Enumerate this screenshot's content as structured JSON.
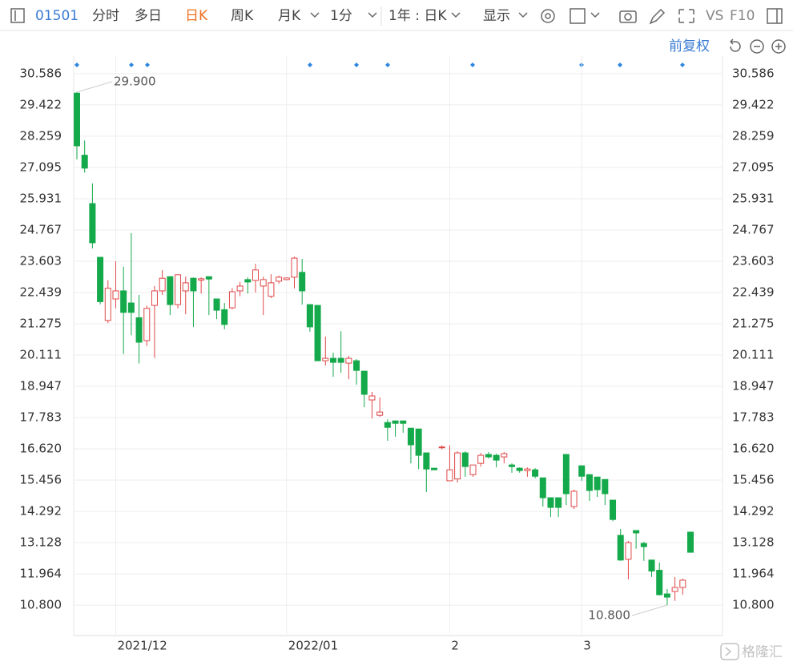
{
  "toolbar": {
    "code": "01501",
    "tabs": [
      "分时",
      "多日",
      "日K",
      "周K",
      "月K"
    ],
    "active_tab": 2,
    "active_color": "#f07020",
    "interval": "1分",
    "range": "1年 : 日K",
    "display": "显示",
    "vs": "VS",
    "f10": "F10"
  },
  "adjust": "前复权",
  "watermark": "格隆汇",
  "chart_data": {
    "type": "candlestick",
    "categories": [
      null,
      null,
      null,
      null,
      null,
      "2021/12",
      null,
      null,
      null,
      null,
      null,
      null,
      null,
      null,
      null,
      null,
      null,
      null,
      null,
      null,
      null,
      null,
      null,
      null,
      null,
      null,
      null,
      "2022/01",
      null,
      null,
      null,
      null,
      null,
      null,
      null,
      null,
      null,
      null,
      null,
      null,
      null,
      null,
      null,
      null,
      null,
      null,
      null,
      null,
      "2",
      null,
      null,
      null,
      null,
      null,
      null,
      null,
      null,
      null,
      null,
      null,
      null,
      null,
      null,
      null,
      null,
      "3",
      null,
      null,
      null,
      null,
      null,
      null,
      null,
      null,
      null,
      null,
      null,
      null,
      null,
      null
    ],
    "open": [
      29.86,
      27.55,
      25.75,
      23.75,
      21.4,
      22.2,
      22.5,
      22.05,
      21.5,
      20.65,
      21.96,
      22.5,
      23.03,
      21.99,
      22.5,
      22.97,
      22.9,
      23.03,
      22.2,
      21.8,
      21.87,
      22.5,
      22.92,
      22.89,
      22.68,
      22.3,
      22.86,
      22.92,
      23.01,
      23.19,
      21.99,
      21.96,
      19.9,
      19.99,
      19.99,
      19.81,
      19.9,
      19.51,
      18.44,
      17.87,
      17.6,
      17.66,
      17.66,
      17.39,
      17.36,
      16.47,
      15.9,
      16.66,
      15.43,
      15.5,
      16.47,
      15.66,
      16.08,
      16.41,
      16.38,
      16.32,
      16.02,
      15.9,
      15.81,
      15.84,
      15.54,
      14.8,
      14.8,
      16.41,
      14.47,
      15.99,
      15.66,
      15.57,
      15.48,
      14.71,
      13.4,
      12.51,
      13.58,
      13.1,
      12.48,
      12.1,
      11.22,
      11.31,
      11.46,
      13.52
    ],
    "high": [
      29.9,
      28.1,
      26.5,
      23.75,
      22.9,
      23.6,
      23.4,
      24.65,
      22.35,
      21.95,
      22.68,
      23.27,
      23.03,
      23.1,
      23.03,
      23.0,
      23.0,
      23.03,
      22.2,
      22.05,
      22.6,
      22.83,
      23.0,
      23.51,
      23.03,
      23.12,
      23.07,
      23.0,
      23.78,
      23.69,
      21.99,
      21.96,
      20.8,
      20.2,
      21.0,
      20.08,
      19.96,
      19.51,
      18.74,
      18.53,
      17.72,
      17.66,
      17.66,
      17.39,
      17.36,
      16.47,
      15.9,
      16.75,
      16.75,
      16.53,
      16.53,
      16.02,
      16.47,
      16.5,
      16.44,
      16.5,
      16.08,
      15.93,
      15.93,
      15.9,
      15.54,
      14.8,
      14.8,
      16.41,
      15.1,
      15.99,
      15.66,
      15.57,
      15.48,
      14.71,
      13.64,
      13.19,
      13.58,
      13.16,
      12.48,
      12.39,
      11.4,
      11.85,
      11.79,
      13.52
    ],
    "low": [
      27.4,
      26.9,
      24.08,
      22.0,
      21.3,
      21.85,
      20.15,
      20.85,
      19.8,
      20.45,
      20.0,
      22.35,
      21.6,
      21.85,
      21.63,
      21.16,
      22.4,
      21.6,
      21.45,
      21.07,
      21.81,
      22.3,
      22.4,
      22.44,
      21.6,
      22.23,
      22.77,
      22.9,
      22.59,
      21.99,
      20.98,
      19.9,
      19.72,
      19.3,
      19.45,
      19.21,
      19.01,
      18.17,
      17.75,
      17.81,
      16.92,
      17.07,
      17.22,
      16.08,
      15.87,
      15.01,
      15.84,
      16.6,
      15.43,
      15.37,
      15.58,
      15.58,
      15.96,
      16.26,
      15.93,
      16.08,
      15.73,
      15.73,
      15.58,
      15.52,
      14.47,
      14.08,
      14.08,
      14.53,
      14.38,
      15.43,
      14.68,
      14.83,
      14.53,
      13.93,
      12.45,
      11.76,
      12.9,
      12.45,
      11.85,
      11.16,
      10.8,
      10.96,
      11.19,
      12.77
    ],
    "close": [
      27.9,
      27.07,
      24.29,
      22.1,
      22.6,
      22.5,
      21.7,
      21.7,
      20.59,
      21.85,
      22.5,
      22.97,
      21.99,
      23.1,
      22.8,
      22.5,
      22.95,
      22.94,
      21.78,
      21.25,
      22.47,
      22.68,
      22.83,
      23.28,
      22.92,
      22.8,
      23.01,
      22.98,
      23.72,
      22.5,
      21.16,
      19.9,
      19.99,
      19.84,
      19.84,
      19.99,
      19.54,
      18.65,
      18.59,
      17.99,
      17.42,
      17.57,
      17.57,
      16.77,
      16.38,
      15.87,
      15.84,
      16.69,
      15.84,
      16.47,
      15.96,
      16.02,
      16.38,
      16.32,
      16.2,
      16.44,
      15.96,
      15.81,
      15.87,
      15.6,
      14.8,
      14.44,
      14.44,
      14.95,
      15.04,
      15.6,
      15.07,
      15.1,
      14.95,
      13.99,
      12.48,
      13.13,
      13.49,
      12.98,
      12.07,
      11.19,
      11.1,
      11.46,
      11.73,
      12.77
    ],
    "up_color": "#e04848",
    "down_color": "#14a94a",
    "ylim": [
      9.67,
      31.24
    ],
    "yticks": [
      {
        "value": 10.8,
        "label": "10.800"
      },
      11.964,
      13.128,
      14.292,
      15.456,
      {
        "value": 16.62,
        "label": "16.620"
      },
      17.783,
      18.947,
      20.111,
      21.275,
      22.439,
      23.603,
      24.767,
      25.931,
      27.095,
      28.259,
      29.422,
      30.586
    ],
    "grid": true,
    "annotations": [
      {
        "value": 29.9,
        "label": "29.900"
      },
      {
        "value": 10.8,
        "label": "10.800"
      }
    ]
  }
}
